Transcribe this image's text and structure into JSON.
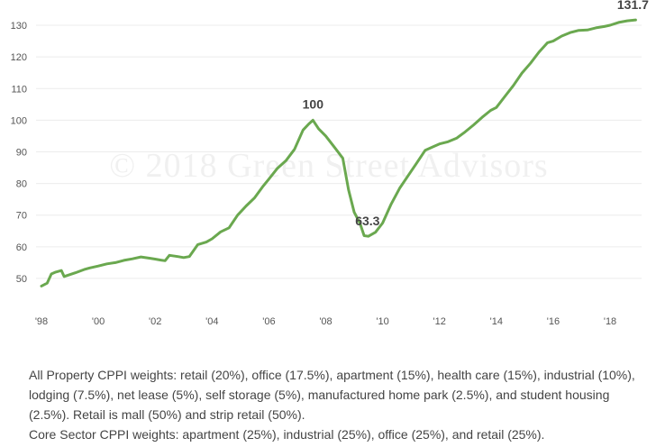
{
  "chart_data": {
    "type": "line",
    "title": "",
    "xlabel": "",
    "ylabel": "",
    "xlim": [
      1998.0,
      2018.95
    ],
    "ylim": [
      44,
      134
    ],
    "x_ticks": [
      {
        "value": 1998,
        "label": "'98"
      },
      {
        "value": 2000,
        "label": "'00"
      },
      {
        "value": 2002,
        "label": "'02"
      },
      {
        "value": 2004,
        "label": "'04"
      },
      {
        "value": 2006,
        "label": "'06"
      },
      {
        "value": 2008,
        "label": "'08"
      },
      {
        "value": 2010,
        "label": "'10"
      },
      {
        "value": 2012,
        "label": "'12"
      },
      {
        "value": 2014,
        "label": "'14"
      },
      {
        "value": 2016,
        "label": "'16"
      },
      {
        "value": 2018,
        "label": "'18"
      }
    ],
    "y_ticks": [
      50,
      60,
      70,
      80,
      90,
      100,
      110,
      120,
      130
    ],
    "grid": "horizontal",
    "line_color": "#6aa84f",
    "series": [
      {
        "x": [
          1998.0,
          1998.2,
          1998.35,
          1998.5,
          1998.7,
          1998.8,
          1999.0,
          1999.2,
          1999.5,
          1999.7,
          2000.0,
          2000.3,
          2000.6,
          2000.9,
          2001.2,
          2001.5,
          2001.8,
          2002.0,
          2002.2,
          2002.35,
          2002.5,
          2002.8,
          2003.0,
          2003.2,
          2003.5,
          2003.8,
          2004.0,
          2004.3,
          2004.6,
          2004.9,
          2005.2,
          2005.5,
          2005.8,
          2006.0,
          2006.3,
          2006.6,
          2006.9,
          2007.2,
          2007.4,
          2007.55,
          2007.75,
          2008.0,
          2008.3,
          2008.6,
          2008.8,
          2009.0,
          2009.2,
          2009.35,
          2009.5,
          2009.75,
          2010.0,
          2010.3,
          2010.6,
          2010.9,
          2011.2,
          2011.5,
          2011.8,
          2012.0,
          2012.3,
          2012.6,
          2012.9,
          2013.2,
          2013.5,
          2013.8,
          2014.0,
          2014.3,
          2014.6,
          2014.9,
          2015.2,
          2015.5,
          2015.8,
          2016.0,
          2016.3,
          2016.6,
          2016.9,
          2017.2,
          2017.5,
          2017.8,
          2018.0,
          2018.3,
          2018.6,
          2018.9
        ],
        "values": [
          47.6,
          48.5,
          51.4,
          52.0,
          52.5,
          50.6,
          51.2,
          51.8,
          52.8,
          53.3,
          53.9,
          54.6,
          55.0,
          55.7,
          56.2,
          56.8,
          56.4,
          56.1,
          55.8,
          55.6,
          57.3,
          56.9,
          56.6,
          56.9,
          60.7,
          61.5,
          62.5,
          64.7,
          66.0,
          70.0,
          72.9,
          75.5,
          79.2,
          81.4,
          84.8,
          87.2,
          90.8,
          96.9,
          98.8,
          100.0,
          97.3,
          95.0,
          91.5,
          88.0,
          78.0,
          70.9,
          67.5,
          63.5,
          63.3,
          64.6,
          67.5,
          73.5,
          78.5,
          82.5,
          86.5,
          90.5,
          91.7,
          92.5,
          93.2,
          94.3,
          96.3,
          98.5,
          100.9,
          103.1,
          104.0,
          107.5,
          111.0,
          114.9,
          118.0,
          121.5,
          124.5,
          125.0,
          126.6,
          127.7,
          128.4,
          128.5,
          129.2,
          129.6,
          130.0,
          130.9,
          131.4,
          131.7
        ]
      }
    ],
    "annotations": [
      {
        "label": "100",
        "x": 2007.55,
        "y": 100.0
      },
      {
        "label": "63.3",
        "x": 2009.5,
        "y": 63.3
      },
      {
        "label": "131.7",
        "x": 2018.9,
        "y": 131.7
      }
    ],
    "watermark": "© 2018 Green Street Advisors"
  },
  "caption": {
    "line1": "All Property CPPI weights: retail (20%), office (17.5%), apartment (15%), health care (15%), industrial (10%), lodging (7.5%), net lease (5%), self storage (5%), manufactured home park (2.5%), and student housing (2.5%). Retail is mall (50%) and strip retail (50%).",
    "line2": "Core Sector CPPI weights: apartment (25%), industrial (25%), office (25%), and retail (25%)."
  }
}
